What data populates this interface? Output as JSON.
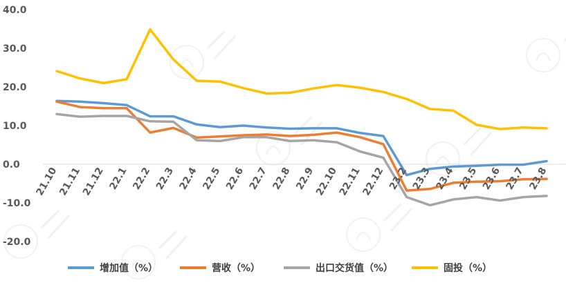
{
  "chart_data": {
    "type": "line",
    "categories": [
      "21.10",
      "21.11",
      "21.12",
      "22.1",
      "22.2",
      "22.3",
      "22.4",
      "22.5",
      "22.6",
      "22.7",
      "22.8",
      "22.9",
      "22.10",
      "22.11",
      "22.12",
      "23.2",
      "23.3",
      "23.4",
      "23.5",
      "23.6",
      "23.7",
      "23.8"
    ],
    "y_ticks": [
      "40.0",
      "30.0",
      "20.0",
      "10.0",
      "0.0",
      "-10.0",
      "-20.0"
    ],
    "ylim": [
      -20,
      40
    ],
    "grid": false,
    "legend_position": "bottom",
    "series": [
      {
        "name": "增加值（%）",
        "color": "#5B9BD5",
        "values": [
          16.4,
          16.2,
          15.8,
          15.3,
          12.4,
          12.4,
          10.3,
          9.6,
          10.0,
          9.5,
          9.2,
          9.3,
          9.3,
          8.1,
          7.3,
          -2.8,
          -1.2,
          -0.6,
          -0.4,
          -0.1,
          -0.1,
          0.8
        ]
      },
      {
        "name": "营收（%）",
        "color": "#ED7D31",
        "values": [
          16.2,
          14.8,
          14.5,
          14.5,
          8.2,
          9.4,
          6.9,
          7.2,
          7.5,
          7.7,
          7.3,
          7.6,
          8.2,
          7.0,
          5.2,
          -6.8,
          -6.4,
          -4.8,
          -4.5,
          -4.4,
          -3.9,
          -3.8
        ]
      },
      {
        "name": "出口交货值（%）",
        "color": "#A5A5A5",
        "values": [
          13.0,
          12.3,
          12.5,
          12.5,
          11.1,
          11.0,
          6.2,
          6.0,
          7.0,
          7.0,
          6.0,
          6.2,
          5.7,
          3.3,
          1.7,
          -8.5,
          -10.6,
          -9.1,
          -8.5,
          -9.4,
          -8.5,
          -8.2
        ]
      },
      {
        "name": "固投（%）",
        "color": "#FFC000",
        "values": [
          24.1,
          22.2,
          21.0,
          22.0,
          34.9,
          27.1,
          21.6,
          21.4,
          19.7,
          18.3,
          18.5,
          19.6,
          20.5,
          19.8,
          18.7,
          16.9,
          14.3,
          13.9,
          10.2,
          9.1,
          9.5,
          9.3
        ]
      }
    ]
  }
}
